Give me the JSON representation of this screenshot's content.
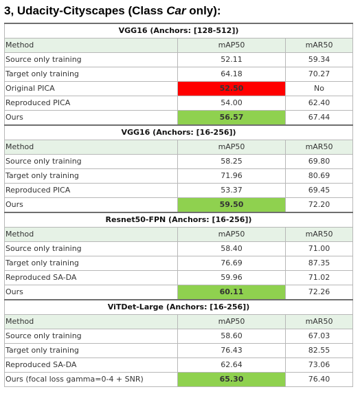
{
  "title": {
    "prefix": "3, Udacity-Cityscapes (Class ",
    "emph": "Car",
    "suffix": " only):"
  },
  "columns": {
    "method": "Method",
    "map": "mAP50",
    "mar": "mAR50"
  },
  "colors": {
    "header_bg": "#e6f2e6",
    "best": "#8fd14f",
    "worst": "#ff0000"
  },
  "sections": [
    {
      "name": "VGG16 (Anchors: [128-512])",
      "rows": [
        {
          "method": "Source only training",
          "map": "52.11",
          "mar": "59.34",
          "highlight": ""
        },
        {
          "method": "Target only training",
          "map": "64.18",
          "mar": "70.27",
          "highlight": ""
        },
        {
          "method": "Original PICA",
          "map": "52.50",
          "mar": "No",
          "highlight": "red"
        },
        {
          "method": "Reproduced PICA",
          "map": "54.00",
          "mar": "62.40",
          "highlight": ""
        },
        {
          "method": "Ours",
          "map": "56.57",
          "mar": "67.44",
          "highlight": "green"
        }
      ]
    },
    {
      "name": "VGG16 (Anchors: [16-256])",
      "rows": [
        {
          "method": "Source only training",
          "map": "58.25",
          "mar": "69.80",
          "highlight": ""
        },
        {
          "method": "Target only training",
          "map": "71.96",
          "mar": "80.69",
          "highlight": ""
        },
        {
          "method": "Reproduced PICA",
          "map": "53.37",
          "mar": "69.45",
          "highlight": ""
        },
        {
          "method": "Ours",
          "map": "59.50",
          "mar": "72.20",
          "highlight": "green"
        }
      ]
    },
    {
      "name": "Resnet50-FPN (Anchors: [16-256])",
      "rows": [
        {
          "method": "Source only training",
          "map": "58.40",
          "mar": "71.00",
          "highlight": ""
        },
        {
          "method": "Target only training",
          "map": "76.69",
          "mar": "87.35",
          "highlight": ""
        },
        {
          "method": "Reproduced SA-DA",
          "map": "59.96",
          "mar": "71.02",
          "highlight": ""
        },
        {
          "method": "Ours",
          "map": "60.11",
          "mar": "72.26",
          "highlight": "green"
        }
      ]
    },
    {
      "name": "ViTDet-Large (Anchors: [16-256])",
      "rows": [
        {
          "method": "Source only training",
          "map": "58.60",
          "mar": "67.03",
          "highlight": ""
        },
        {
          "method": "Target only training",
          "map": "76.43",
          "mar": "82.55",
          "highlight": ""
        },
        {
          "method": "Reproduced SA-DA",
          "map": "62.64",
          "mar": "73.06",
          "highlight": ""
        },
        {
          "method": "Ours (focal loss gamma=0-4 + SNR)",
          "map": "65.30",
          "mar": "76.40",
          "highlight": "green"
        }
      ]
    }
  ]
}
